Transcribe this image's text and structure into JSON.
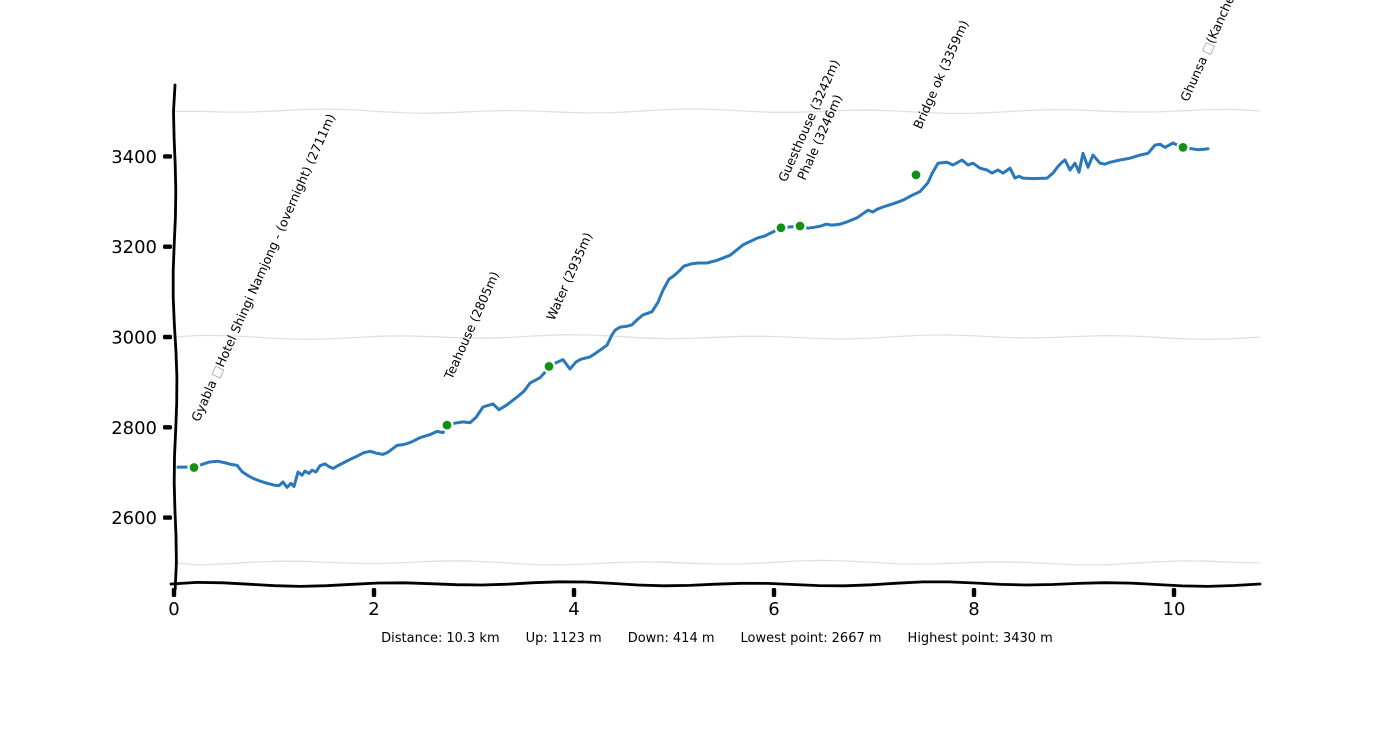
{
  "chart_data": {
    "type": "line",
    "title": "",
    "xlabel": "",
    "ylabel": "",
    "x_ticks": [
      0,
      2,
      4,
      6,
      8,
      10
    ],
    "y_ticks": [
      2600,
      2800,
      3000,
      3200,
      3400
    ],
    "gridlines_elevation": [
      2500,
      3000,
      3500
    ],
    "xlim_km": [
      0,
      10.88
    ],
    "ylim_m": [
      2453,
      3558
    ],
    "grid_on": true,
    "legend_position": "none",
    "colors": {
      "line": "#2878ba",
      "marker": "#158f15",
      "marker_edge": "#ffffff",
      "grid": "#e0e0e0",
      "axis": "#000000",
      "text": "#000000",
      "missing_glyph": "#9a9a9a"
    },
    "series": [
      {
        "name": "elevation-profile",
        "points": [
          [
            0.04,
            2712
          ],
          [
            0.12,
            2712
          ],
          [
            0.2,
            2711
          ],
          [
            0.28,
            2718
          ],
          [
            0.35,
            2723
          ],
          [
            0.43,
            2725
          ],
          [
            0.5,
            2722
          ],
          [
            0.57,
            2718
          ],
          [
            0.63,
            2716
          ],
          [
            0.68,
            2702
          ],
          [
            0.74,
            2693
          ],
          [
            0.79,
            2687
          ],
          [
            0.86,
            2681
          ],
          [
            0.93,
            2676
          ],
          [
            1.0,
            2672
          ],
          [
            1.05,
            2671
          ],
          [
            1.09,
            2679
          ],
          [
            1.13,
            2667
          ],
          [
            1.17,
            2676
          ],
          [
            1.2,
            2669
          ],
          [
            1.24,
            2701
          ],
          [
            1.28,
            2694
          ],
          [
            1.31,
            2703
          ],
          [
            1.35,
            2698
          ],
          [
            1.38,
            2705
          ],
          [
            1.42,
            2701
          ],
          [
            1.46,
            2715
          ],
          [
            1.51,
            2719
          ],
          [
            1.55,
            2713
          ],
          [
            1.59,
            2709
          ],
          [
            1.63,
            2714
          ],
          [
            1.7,
            2722
          ],
          [
            1.76,
            2729
          ],
          [
            1.83,
            2736
          ],
          [
            1.9,
            2744
          ],
          [
            1.96,
            2747
          ],
          [
            2.02,
            2743
          ],
          [
            2.09,
            2740
          ],
          [
            2.14,
            2745
          ],
          [
            2.23,
            2760
          ],
          [
            2.3,
            2762
          ],
          [
            2.37,
            2767
          ],
          [
            2.46,
            2777
          ],
          [
            2.56,
            2784
          ],
          [
            2.63,
            2791
          ],
          [
            2.69,
            2788
          ],
          [
            2.73,
            2804
          ],
          [
            2.8,
            2809
          ],
          [
            2.89,
            2812
          ],
          [
            2.96,
            2810
          ],
          [
            3.02,
            2822
          ],
          [
            3.09,
            2845
          ],
          [
            3.19,
            2852
          ],
          [
            3.25,
            2839
          ],
          [
            3.33,
            2850
          ],
          [
            3.43,
            2867
          ],
          [
            3.5,
            2880
          ],
          [
            3.56,
            2898
          ],
          [
            3.66,
            2910
          ],
          [
            3.71,
            2922
          ],
          [
            3.75,
            2934
          ],
          [
            3.82,
            2943
          ],
          [
            3.89,
            2950
          ],
          [
            3.96,
            2929
          ],
          [
            4.02,
            2945
          ],
          [
            4.07,
            2951
          ],
          [
            4.16,
            2956
          ],
          [
            4.21,
            2963
          ],
          [
            4.26,
            2971
          ],
          [
            4.33,
            2982
          ],
          [
            4.38,
            3005
          ],
          [
            4.41,
            3015
          ],
          [
            4.46,
            3022
          ],
          [
            4.53,
            3024
          ],
          [
            4.58,
            3027
          ],
          [
            4.63,
            3038
          ],
          [
            4.69,
            3049
          ],
          [
            4.78,
            3056
          ],
          [
            4.84,
            3077
          ],
          [
            4.89,
            3104
          ],
          [
            4.95,
            3128
          ],
          [
            5.0,
            3136
          ],
          [
            5.06,
            3148
          ],
          [
            5.1,
            3157
          ],
          [
            5.17,
            3162
          ],
          [
            5.24,
            3164
          ],
          [
            5.33,
            3164
          ],
          [
            5.43,
            3170
          ],
          [
            5.56,
            3181
          ],
          [
            5.69,
            3204
          ],
          [
            5.83,
            3219
          ],
          [
            5.91,
            3224
          ],
          [
            6.0,
            3234
          ],
          [
            6.07,
            3242
          ],
          [
            6.17,
            3244
          ],
          [
            6.26,
            3246
          ],
          [
            6.34,
            3241
          ],
          [
            6.4,
            3243
          ],
          [
            6.47,
            3246
          ],
          [
            6.52,
            3250
          ],
          [
            6.58,
            3248
          ],
          [
            6.66,
            3250
          ],
          [
            6.73,
            3255
          ],
          [
            6.83,
            3264
          ],
          [
            6.94,
            3281
          ],
          [
            6.99,
            3277
          ],
          [
            7.03,
            3283
          ],
          [
            7.09,
            3288
          ],
          [
            7.19,
            3295
          ],
          [
            7.29,
            3303
          ],
          [
            7.38,
            3314
          ],
          [
            7.46,
            3322
          ],
          [
            7.54,
            3342
          ],
          [
            7.58,
            3362
          ],
          [
            7.64,
            3385
          ],
          [
            7.73,
            3387
          ],
          [
            7.79,
            3381
          ],
          [
            7.88,
            3392
          ],
          [
            7.94,
            3381
          ],
          [
            7.99,
            3385
          ],
          [
            8.06,
            3374
          ],
          [
            8.13,
            3370
          ],
          [
            8.18,
            3363
          ],
          [
            8.24,
            3370
          ],
          [
            8.29,
            3363
          ],
          [
            8.36,
            3374
          ],
          [
            8.41,
            3352
          ],
          [
            8.45,
            3356
          ],
          [
            8.49,
            3352
          ],
          [
            8.6,
            3351
          ],
          [
            8.73,
            3352
          ],
          [
            8.79,
            3363
          ],
          [
            8.84,
            3378
          ],
          [
            8.88,
            3387
          ],
          [
            8.91,
            3392
          ],
          [
            8.96,
            3370
          ],
          [
            9.01,
            3385
          ],
          [
            9.05,
            3365
          ],
          [
            9.09,
            3407
          ],
          [
            9.14,
            3376
          ],
          [
            9.19,
            3403
          ],
          [
            9.26,
            3385
          ],
          [
            9.31,
            3383
          ],
          [
            9.36,
            3387
          ],
          [
            9.46,
            3392
          ],
          [
            9.56,
            3396
          ],
          [
            9.66,
            3403
          ],
          [
            9.74,
            3407
          ],
          [
            9.81,
            3425
          ],
          [
            9.86,
            3427
          ],
          [
            9.91,
            3420
          ],
          [
            9.99,
            3430
          ],
          [
            10.06,
            3422
          ],
          [
            10.12,
            3419
          ],
          [
            10.18,
            3417
          ],
          [
            10.24,
            3415
          ],
          [
            10.3,
            3416
          ],
          [
            10.34,
            3417
          ]
        ]
      }
    ],
    "waypoints": [
      {
        "km": 0.2,
        "m": 2711,
        "label": "Gyabla □Hotel Shingi Namjong - (overnight) (2711m)"
      },
      {
        "km": 2.73,
        "m": 2805,
        "label": "Teahouse (2805m)"
      },
      {
        "km": 3.75,
        "m": 2935,
        "label": "Water (2935m)"
      },
      {
        "km": 6.07,
        "m": 3242,
        "label": "Guesthouse (3242m)"
      },
      {
        "km": 6.26,
        "m": 3246,
        "label": "Phale (3246m)"
      },
      {
        "km": 7.42,
        "m": 3359,
        "label": "Bridge ok (3359m)"
      },
      {
        "km": 10.09,
        "m": 3420,
        "label": "Ghunsa □(Kanchenjun"
      }
    ]
  },
  "stats": {
    "items": [
      {
        "label": "Distance:",
        "value": "10.3 km"
      },
      {
        "label": "Up:",
        "value": "1123 m"
      },
      {
        "label": "Down:",
        "value": "414 m"
      },
      {
        "label": "Lowest point:",
        "value": "2667 m"
      },
      {
        "label": "Highest point:",
        "value": "3430 m"
      }
    ]
  }
}
